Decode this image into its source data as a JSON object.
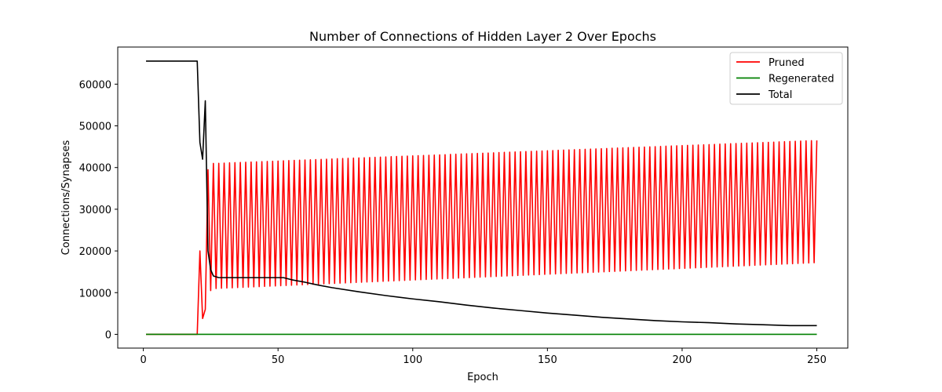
{
  "chart_data": {
    "type": "line",
    "title": "Number of Connections of Hidden Layer 2 Over Epochs",
    "xlabel": "Epoch",
    "ylabel": "Connections/Synapses",
    "xlim": [
      -9.5,
      261.5
    ],
    "ylim": [
      -3300,
      68900
    ],
    "x_ticks": [
      0,
      50,
      100,
      150,
      200,
      250
    ],
    "y_ticks": [
      0,
      10000,
      20000,
      30000,
      40000,
      50000,
      60000
    ],
    "legend_position": "top-right",
    "grid": false,
    "series": [
      {
        "name": "Pruned",
        "color": "#ff0000",
        "points": [
          [
            1,
            0
          ],
          [
            20,
            0
          ],
          [
            21,
            20000
          ],
          [
            22,
            3800
          ],
          [
            23,
            6000
          ],
          [
            24,
            39500
          ],
          [
            25,
            10500
          ],
          [
            26,
            41000
          ],
          [
            27,
            11000
          ],
          [
            250,
            46500
          ]
        ],
        "oscillation": {
          "from_epoch": 27,
          "to_epoch": 250,
          "low_start": 11000,
          "low_end": 17200,
          "high_start": 41000,
          "high_end": 46500
        }
      },
      {
        "name": "Regenerated",
        "color": "#008000",
        "points": [
          [
            1,
            0
          ],
          [
            250,
            0
          ]
        ]
      },
      {
        "name": "Total",
        "color": "#000000",
        "points": [
          [
            1,
            65536
          ],
          [
            20,
            65536
          ],
          [
            21,
            46000
          ],
          [
            22,
            42000
          ],
          [
            23,
            56000
          ],
          [
            24,
            20000
          ],
          [
            25,
            15500
          ],
          [
            26,
            14000
          ],
          [
            28,
            13600
          ],
          [
            52,
            13600
          ],
          [
            55,
            13100
          ],
          [
            60,
            12500
          ],
          [
            65,
            11800
          ],
          [
            70,
            11200
          ],
          [
            80,
            10200
          ],
          [
            90,
            9300
          ],
          [
            100,
            8500
          ],
          [
            110,
            7800
          ],
          [
            120,
            7000
          ],
          [
            130,
            6300
          ],
          [
            140,
            5700
          ],
          [
            150,
            5100
          ],
          [
            160,
            4600
          ],
          [
            170,
            4100
          ],
          [
            180,
            3700
          ],
          [
            190,
            3300
          ],
          [
            200,
            3000
          ],
          [
            210,
            2800
          ],
          [
            220,
            2500
          ],
          [
            230,
            2300
          ],
          [
            240,
            2100
          ],
          [
            250,
            2100
          ]
        ]
      }
    ]
  }
}
